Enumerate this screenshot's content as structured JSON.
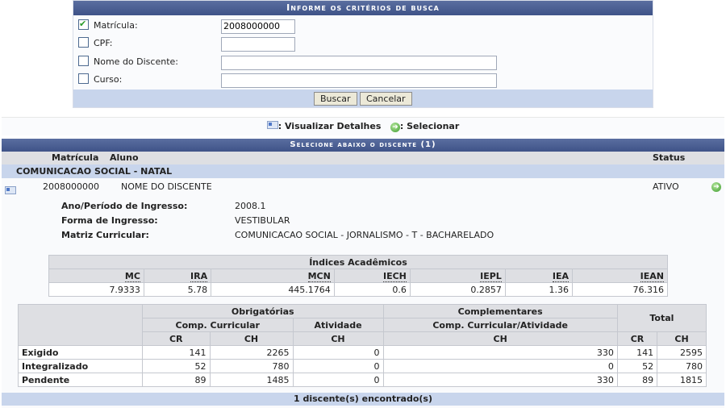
{
  "search": {
    "title": "Informe os critérios de busca",
    "fields": [
      {
        "label": "Matrícula:",
        "checked": true,
        "value": "2008000000"
      },
      {
        "label": "CPF:",
        "checked": false,
        "value": ""
      },
      {
        "label": "Nome do Discente:",
        "checked": false,
        "value": ""
      },
      {
        "label": "Curso:",
        "checked": false,
        "value": ""
      }
    ],
    "buscar": "Buscar",
    "cancelar": "Cancelar"
  },
  "legend": {
    "details": ": Visualizar Detalhes",
    "select": ": Selecionar"
  },
  "results": {
    "title": "Selecione abaixo o discente (1)",
    "columns": {
      "matricula": "Matrícula",
      "aluno": "Aluno",
      "status": "Status"
    },
    "group": "COMUNICACAO SOCIAL - NATAL",
    "student": {
      "matricula": "2008000000",
      "nome": "NOME DO DISCENTE",
      "status": "ATIVO",
      "details": [
        {
          "label": "Ano/Período de Ingresso:",
          "value": "2008.1"
        },
        {
          "label": "Forma de Ingresso:",
          "value": "VESTIBULAR"
        },
        {
          "label": "Matriz Curricular:",
          "value": "COMUNICACAO SOCIAL - JORNALISMO - T - BACHARELADO"
        }
      ]
    },
    "indices": {
      "title": "Índices Acadêmicos",
      "headers": [
        "MC",
        "IRA",
        "MCN",
        "IECH",
        "IEPL",
        "IEA",
        "IEAN"
      ],
      "values": [
        "7.9333",
        "5.78",
        "445.1764",
        "0.6",
        "0.2857",
        "1.36",
        "76.316"
      ]
    },
    "ch": {
      "obrig": "Obrigatórias",
      "compl": "Complementares",
      "total": "Total",
      "compcurr": "Comp. Curricular",
      "ativ": "Atividade",
      "compativ": "Comp. Curricular/Atividade",
      "cr": "CR",
      "chh": "CH",
      "rows": [
        [
          "Exigido",
          "141",
          "2265",
          "0",
          "330",
          "141",
          "2595"
        ],
        [
          "Integralizado",
          "52",
          "780",
          "0",
          "0",
          "52",
          "780"
        ],
        [
          "Pendente",
          "89",
          "1485",
          "0",
          "330",
          "89",
          "1815"
        ]
      ]
    },
    "footer": "1 discente(s) encontrado(s)"
  }
}
